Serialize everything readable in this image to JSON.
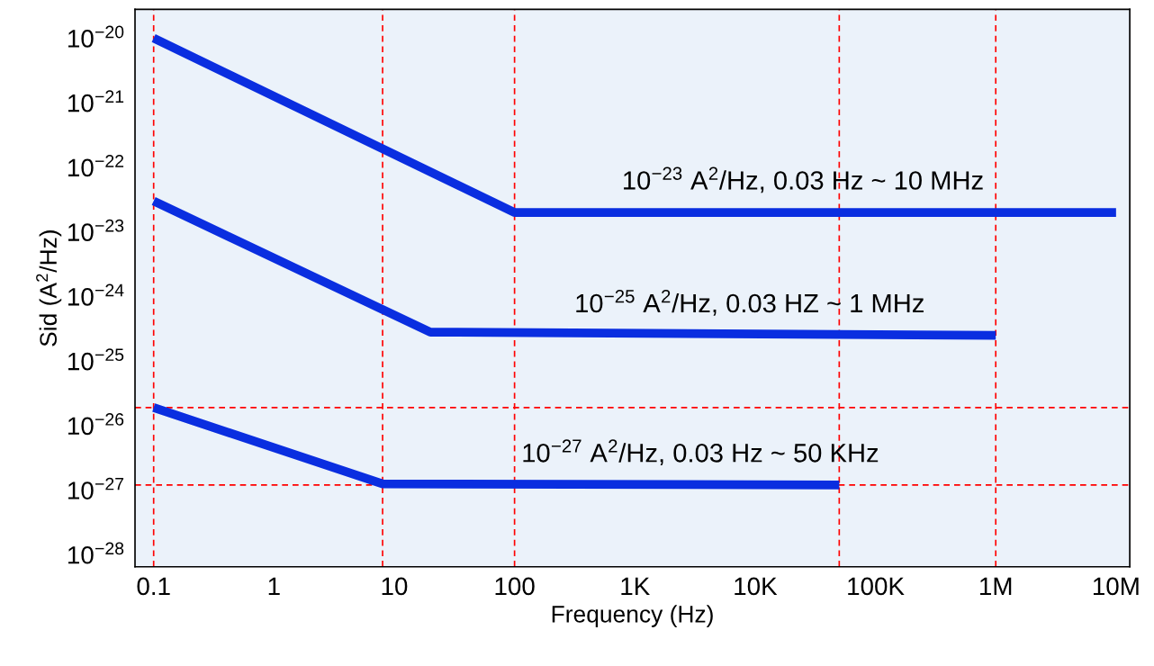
{
  "chart_data": {
    "type": "line",
    "xlabel": "Frequency (Hz)",
    "ylabel": "Sid (A$^{2}$/Hz)",
    "log": "xy",
    "grid": false,
    "legend": false,
    "marker": "none",
    "line_style": "solid",
    "xlim": [
      0.07,
      13000000
    ],
    "ylim": [
      6.5e-29,
      2.8e-20
    ],
    "xticks": [
      {
        "value": 0.1,
        "label": "0.1"
      },
      {
        "value": 1,
        "label": "1"
      },
      {
        "value": 10,
        "label": "10"
      },
      {
        "value": 100,
        "label": "100"
      },
      {
        "value": 1000,
        "label": "1K"
      },
      {
        "value": 10000,
        "label": "10K"
      },
      {
        "value": 100000,
        "label": "100K"
      },
      {
        "value": 1000000,
        "label": "1M"
      },
      {
        "value": 10000000,
        "label": "10M"
      }
    ],
    "yticks": [
      {
        "value": 1e-20,
        "label": "10$^{−20}$"
      },
      {
        "value": 1e-21,
        "label": "10$^{−21}$"
      },
      {
        "value": 1e-22,
        "label": "10$^{−22}$"
      },
      {
        "value": 1e-23,
        "label": "10$^{−23}$"
      },
      {
        "value": 1e-24,
        "label": "10$^{−24}$"
      },
      {
        "value": 1e-25,
        "label": "10$^{−25}$"
      },
      {
        "value": 1e-26,
        "label": "10$^{−26}$"
      },
      {
        "value": 1e-27,
        "label": "10$^{−27}$"
      },
      {
        "value": 1e-28,
        "label": "10$^{−28}$"
      }
    ],
    "series": [
      {
        "color": "#0a2ee0",
        "x": [
          0.1,
          100,
          10000000
        ],
        "values": [
          1e-20,
          2e-23,
          2e-23
        ]
      },
      {
        "color": "#0a2ee0",
        "x": [
          0.1,
          20,
          1000000
        ],
        "values": [
          3e-23,
          2.8e-25,
          2.5e-25
        ]
      },
      {
        "color": "#0a2ee0",
        "x": [
          0.1,
          8,
          50000
        ],
        "values": [
          1.9e-26,
          1.25e-27,
          1.2e-27
        ]
      }
    ],
    "ref_lines": [
      {
        "axis": "x",
        "value": 0.1,
        "color": "#ff0000",
        "line_style": "dashed"
      },
      {
        "axis": "x",
        "value": 8,
        "color": "#ff0000",
        "line_style": "dashed"
      },
      {
        "axis": "x",
        "value": 100,
        "color": "#ff0000",
        "line_style": "dashed"
      },
      {
        "axis": "x",
        "value": 50000,
        "color": "#ff0000",
        "line_style": "dashed"
      },
      {
        "axis": "x",
        "value": 1000000,
        "color": "#ff0000",
        "line_style": "dashed"
      },
      {
        "axis": "y",
        "value": 1.9e-26,
        "color": "#ff0000",
        "line_style": "dashed"
      },
      {
        "axis": "y",
        "value": 1.2e-27,
        "color": "#ff0000",
        "line_style": "dashed"
      }
    ],
    "annotations": [
      {
        "text": "10$^{−23}$ A$^{2}$/Hz, 0.03 Hz ~ 10 MHz",
        "x": 25000,
        "y": 2e-23
      },
      {
        "text": "10$^{−25}$ A$^{2}$/Hz, 0.03 HZ ~ 1 MHz",
        "x": 9000,
        "y": 2.5e-25
      },
      {
        "text": "10$^{−27}$ A$^{2}$/Hz, 0.03 Hz ~ 50 KHz",
        "x": 3500,
        "y": 1.2e-27
      }
    ]
  }
}
